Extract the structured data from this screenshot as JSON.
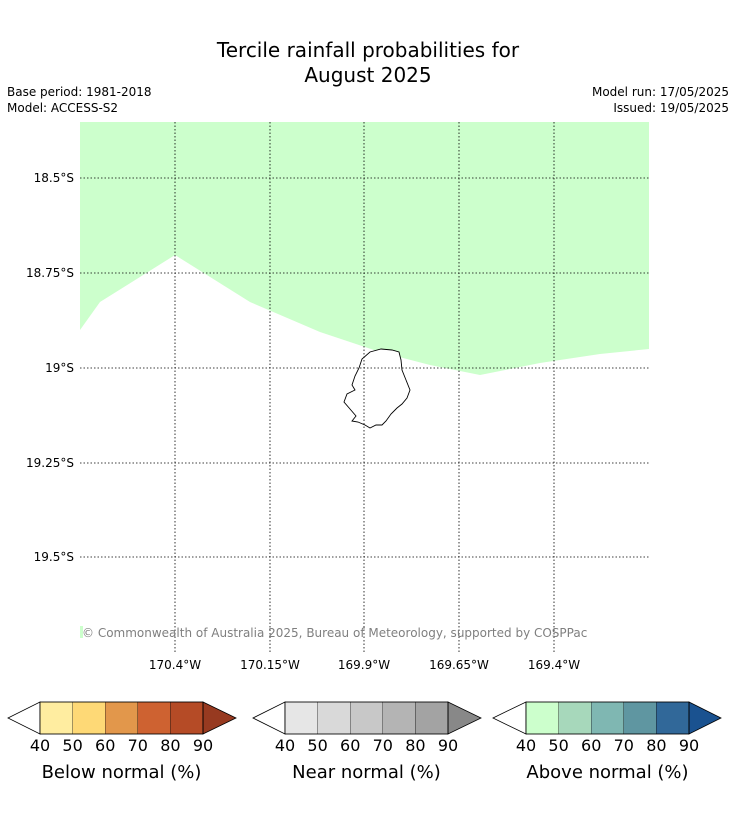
{
  "title_line1": "Tercile rainfall probabilities for",
  "title_line2": "August 2025",
  "base_period": "Base period: 1981-2018",
  "model": "Model: ACCESS-S2",
  "model_run": "Model run: 17/05/2025",
  "issued": "Issued: 19/05/2025",
  "map": {
    "y_ticks": [
      "18.5°S",
      "18.75°S",
      "19°S",
      "19.25°S",
      "19.5°S"
    ],
    "x_ticks": [
      "170.4°W",
      "170.15°W",
      "169.9°W",
      "169.65°W",
      "169.4°W"
    ],
    "copyright": "© Commonwealth of Australia 2025, Bureau of Meteorology, supported by COSPPac",
    "region_category": "Above normal, 40-50%",
    "region_color": "#ccffcc",
    "island_outline_color": "#000000",
    "gridline_style": "dotted"
  },
  "colorbars": [
    {
      "title": "Below normal (%)",
      "ticks": [
        "40",
        "50",
        "60",
        "70",
        "80",
        "90"
      ],
      "colors": [
        "#ffeda0",
        "#fed976",
        "#e2974b",
        "#ce6231",
        "#b54b26"
      ],
      "under_color": "#ffffff",
      "over_color": "#973a20"
    },
    {
      "title": "Near normal (%)",
      "ticks": [
        "40",
        "50",
        "60",
        "70",
        "80",
        "90"
      ],
      "colors": [
        "#e6e6e6",
        "#d9d9d9",
        "#c8c8c8",
        "#b4b4b4",
        "#a3a3a3"
      ],
      "under_color": "#ffffff",
      "over_color": "#888888"
    },
    {
      "title": "Above normal (%)",
      "ticks": [
        "40",
        "50",
        "60",
        "70",
        "80",
        "90"
      ],
      "colors": [
        "#ccffcc",
        "#a7d8bb",
        "#7fb7b2",
        "#5f96a1",
        "#316899"
      ],
      "under_color": "#ffffff",
      "over_color": "#1a5290"
    }
  ]
}
